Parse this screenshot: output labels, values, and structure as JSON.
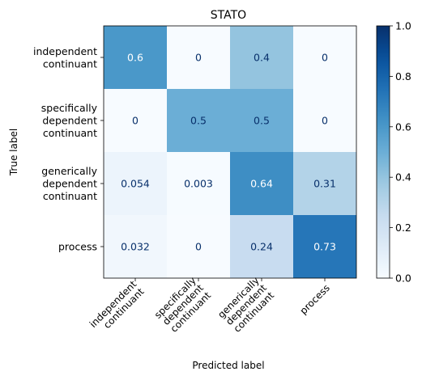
{
  "chart_data": {
    "type": "heatmap",
    "title": "STATO",
    "xlabel": "Predicted label",
    "ylabel": "True label",
    "row_labels": [
      [
        "independent",
        "continuant"
      ],
      [
        "specifically",
        "dependent",
        "continuant"
      ],
      [
        "generically",
        "dependent",
        "continuant"
      ],
      [
        "process"
      ]
    ],
    "col_labels": [
      [
        "independent",
        "continuant"
      ],
      [
        "specifically",
        "dependent",
        "continuant"
      ],
      [
        "generically",
        "dependent",
        "continuant"
      ],
      [
        "process"
      ]
    ],
    "values": [
      [
        0.6,
        0,
        0.4,
        0
      ],
      [
        0,
        0.5,
        0.5,
        0
      ],
      [
        0.054,
        0.003,
        0.64,
        0.31
      ],
      [
        0.032,
        0,
        0.24,
        0.73
      ]
    ],
    "value_labels": [
      [
        "0.6",
        "0",
        "0.4",
        "0"
      ],
      [
        "0",
        "0.5",
        "0.5",
        "0"
      ],
      [
        "0.054",
        "0.003",
        "0.64",
        "0.31"
      ],
      [
        "0.032",
        "0",
        "0.24",
        "0.73"
      ]
    ],
    "colorbar": {
      "range": [
        0.0,
        1.0
      ],
      "ticks": [
        0.0,
        0.2,
        0.4,
        0.6,
        0.8,
        1.0
      ],
      "tick_labels": [
        "0.0",
        "0.2",
        "0.4",
        "0.6",
        "0.8",
        "1.0"
      ],
      "colormap": "Blues"
    },
    "grid": false
  }
}
